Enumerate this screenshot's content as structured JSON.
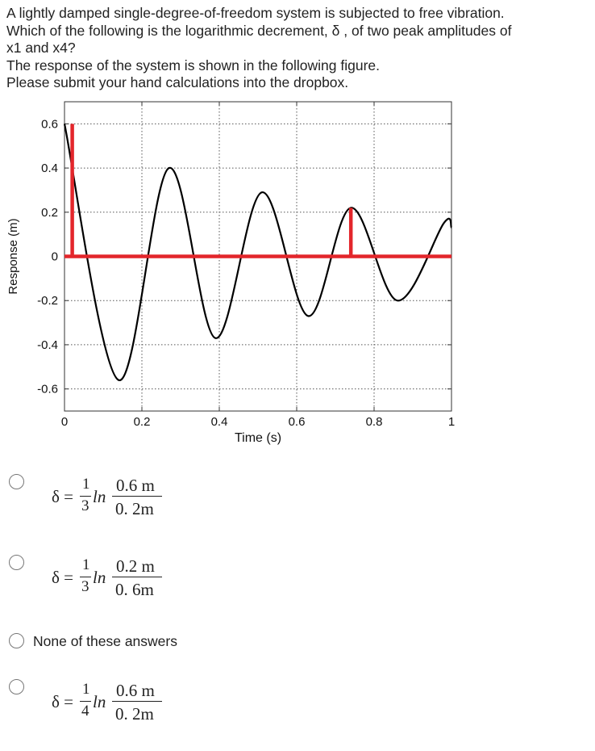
{
  "question": {
    "lines": [
      "A lightly damped single-degree-of-freedom system is subjected to free vibration.",
      "Which of the following is the logarithmic decrement, δ , of two peak amplitudes of",
      "x1 and x4?",
      "The response of the system is shown in the following figure.",
      "Please submit your hand calculations into the dropbox."
    ]
  },
  "chart_data": {
    "type": "line",
    "xlabel": "Time (s)",
    "ylabel": "Response (m)",
    "xlim": [
      0,
      1
    ],
    "ylim": [
      -0.7,
      0.7
    ],
    "xticks": [
      "0",
      "0.2",
      "0.4",
      "0.6",
      "0.8",
      "1"
    ],
    "yticks": [
      "0.6",
      "0.4",
      "0.2",
      "0",
      "-0.2",
      "-0.4",
      "-0.6"
    ],
    "grid": true,
    "series": [
      {
        "color": "#000000",
        "x": [
          0.0,
          0.14,
          0.27,
          0.39,
          0.51,
          0.63,
          0.74,
          0.86,
          0.98,
          1.0
        ],
        "y": [
          0.6,
          -0.56,
          0.4,
          -0.37,
          0.29,
          -0.27,
          0.22,
          -0.2,
          0.15,
          0.13
        ]
      }
    ],
    "annotations": [
      {
        "type": "hline",
        "y": 0,
        "color": "#e3262b"
      },
      {
        "type": "vline",
        "x": 0.02,
        "y": [
          0,
          0.6
        ],
        "color": "#e3262b"
      },
      {
        "type": "vline",
        "x": 0.74,
        "y": [
          0,
          0.22
        ],
        "color": "#e3262b"
      }
    ]
  },
  "options": [
    {
      "prefix": "δ =",
      "num": "1",
      "den": "3",
      "ln": "ln",
      "top": "0.6 m",
      "bottom": "0. 2m"
    },
    {
      "prefix": "δ =",
      "num": "1",
      "den": "3",
      "ln": "ln",
      "top": "0.2 m",
      "bottom": "0. 6m"
    },
    {
      "label": "None of these answers"
    },
    {
      "prefix": "δ =",
      "num": "1",
      "den": "4",
      "ln": "ln",
      "top": "0.6 m",
      "bottom": "0. 2m"
    }
  ],
  "colors": {
    "curve": "#000000",
    "marker": "#e3262b",
    "grid": "#555555",
    "radio_border": "#777777"
  }
}
